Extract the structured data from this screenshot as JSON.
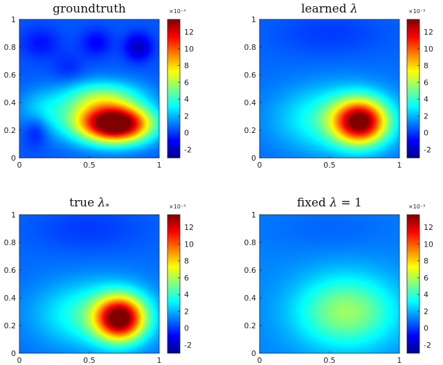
{
  "chart_data": [
    {
      "type": "heatmap",
      "title": "groundtruth",
      "xlim": [
        0,
        1
      ],
      "ylim": [
        0,
        1
      ],
      "x_ticks": [
        "0",
        "0.5",
        "1"
      ],
      "y_ticks": [
        "0",
        "0.2",
        "0.4",
        "0.6",
        "0.8",
        "1"
      ],
      "colorbar": {
        "range": [
          -3,
          13.5
        ],
        "ticks": [
          "-2",
          "0",
          "2",
          "4",
          "6",
          "8",
          "10",
          "12"
        ],
        "multiplier": "×10⁻³"
      },
      "colormap": "jet",
      "background_level": 0.5,
      "peaks": [
        {
          "x": 0.7,
          "y": 0.24,
          "value": 12.5,
          "sx": 0.17,
          "sy": 0.09
        },
        {
          "x": 0.55,
          "y": 0.3,
          "value": 4.5,
          "sx": 0.22,
          "sy": 0.12
        },
        {
          "x": 0.6,
          "y": 0.45,
          "value": 3.0,
          "sx": 0.2,
          "sy": 0.08
        },
        {
          "x": 0.15,
          "y": 0.35,
          "value": 1.5,
          "sx": 0.12,
          "sy": 0.1
        },
        {
          "x": 0.85,
          "y": 0.8,
          "value": -2.5,
          "sx": 0.07,
          "sy": 0.07
        },
        {
          "x": 0.55,
          "y": 0.83,
          "value": -1.5,
          "sx": 0.08,
          "sy": 0.07
        },
        {
          "x": 0.15,
          "y": 0.83,
          "value": -1.2,
          "sx": 0.1,
          "sy": 0.08
        },
        {
          "x": 0.12,
          "y": 0.2,
          "value": -1.5,
          "sx": 0.06,
          "sy": 0.08
        },
        {
          "x": 0.35,
          "y": 0.65,
          "value": -0.8,
          "sx": 0.08,
          "sy": 0.08
        }
      ]
    },
    {
      "type": "heatmap",
      "title": "learned λ",
      "xlim": [
        0,
        1
      ],
      "ylim": [
        0,
        1
      ],
      "x_ticks": [
        "0",
        "0.5",
        "1"
      ],
      "y_ticks": [
        "0",
        "0.2",
        "0.4",
        "0.6",
        "0.8",
        "1"
      ],
      "colorbar": {
        "range": [
          -3,
          13.5
        ],
        "ticks": [
          "-2",
          "0",
          "2",
          "4",
          "6",
          "8",
          "10",
          "12"
        ],
        "multiplier": "×10⁻³"
      },
      "colormap": "jet",
      "background_level": 0.8,
      "peaks": [
        {
          "x": 0.72,
          "y": 0.26,
          "value": 11.0,
          "sx": 0.13,
          "sy": 0.11
        },
        {
          "x": 0.55,
          "y": 0.28,
          "value": 3.5,
          "sx": 0.28,
          "sy": 0.16
        },
        {
          "x": 0.5,
          "y": 0.9,
          "value": -0.8,
          "sx": 0.3,
          "sy": 0.12
        }
      ]
    },
    {
      "type": "heatmap",
      "title": "true λ*",
      "xlim": [
        0,
        1
      ],
      "ylim": [
        0,
        1
      ],
      "x_ticks": [
        "0",
        "0.5",
        "1"
      ],
      "y_ticks": [
        "0",
        "0.2",
        "0.4",
        "0.6",
        "0.8",
        "1"
      ],
      "colorbar": {
        "range": [
          -3,
          13.5
        ],
        "ticks": [
          "-2",
          "0",
          "2",
          "4",
          "6",
          "8",
          "10",
          "12"
        ],
        "multiplier": "×10⁻³"
      },
      "colormap": "jet",
      "background_level": 0.8,
      "peaks": [
        {
          "x": 0.72,
          "y": 0.25,
          "value": 11.5,
          "sx": 0.12,
          "sy": 0.11
        },
        {
          "x": 0.55,
          "y": 0.28,
          "value": 3.5,
          "sx": 0.28,
          "sy": 0.16
        },
        {
          "x": 0.5,
          "y": 0.9,
          "value": -0.8,
          "sx": 0.3,
          "sy": 0.12
        }
      ]
    },
    {
      "type": "heatmap",
      "title": "fixed λ = 1",
      "xlim": [
        0,
        1
      ],
      "ylim": [
        0,
        1
      ],
      "x_ticks": [
        "0",
        "0.5",
        "1"
      ],
      "y_ticks": [
        "0",
        "0.2",
        "0.4",
        "0.6",
        "0.8",
        "1"
      ],
      "colorbar": {
        "range": [
          -3,
          13.5
        ],
        "ticks": [
          "-2",
          "0",
          "2",
          "4",
          "6",
          "8",
          "10",
          "12"
        ],
        "multiplier": "×10⁻³"
      },
      "colormap": "jet",
      "background_level": 1.2,
      "peaks": [
        {
          "x": 0.62,
          "y": 0.3,
          "value": 4.5,
          "sx": 0.25,
          "sy": 0.18
        },
        {
          "x": 0.5,
          "y": 0.9,
          "value": -0.5,
          "sx": 0.35,
          "sy": 0.12
        }
      ]
    }
  ]
}
